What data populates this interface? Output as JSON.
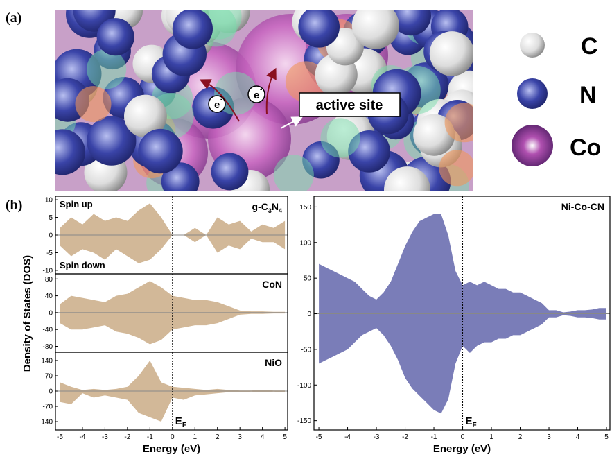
{
  "panel_a": {
    "label": "(a)",
    "active_site": "active site",
    "electron": "e",
    "electron_charge": "-",
    "legend": [
      "C",
      "N",
      "Co"
    ]
  },
  "panel_b_label": "(b)",
  "ylabel": "Density of States (DOS)",
  "fermi_label": "E",
  "fermi_subscript": "F",
  "chart_data": [
    {
      "type": "area",
      "title": [
        "g-C",
        "3",
        "N",
        "4"
      ],
      "color": "#d2b898",
      "x": [
        -5,
        -4.5,
        -4,
        -3.5,
        -3,
        -2.5,
        -2,
        -1.5,
        -1,
        -0.5,
        0,
        0.5,
        1,
        1.5,
        2,
        2.5,
        3,
        3.5,
        4,
        4.5,
        5
      ],
      "series": [
        {
          "name": "Spin up",
          "values": [
            2,
            5,
            3,
            6,
            4,
            5,
            4,
            7,
            9,
            5,
            0,
            0,
            2,
            0,
            5,
            3,
            4,
            1,
            3,
            2,
            4
          ]
        },
        {
          "name": "Spin down",
          "values": [
            -3,
            -6,
            -4,
            -5,
            -7,
            -4,
            -6,
            -8,
            -7,
            -4,
            0,
            0,
            -2,
            0,
            -5,
            -3,
            -4,
            -1,
            -2,
            -2,
            -4
          ]
        }
      ],
      "xlim": [
        -5.2,
        5.12
      ],
      "ylim": [
        -11,
        11
      ],
      "yticks": [
        -10,
        -5,
        0,
        5,
        10
      ]
    },
    {
      "type": "area",
      "title": [
        "CoN"
      ],
      "color": "#d2b898",
      "x": [
        -5,
        -4.5,
        -4,
        -3.5,
        -3,
        -2.5,
        -2,
        -1.5,
        -1,
        -0.5,
        0,
        0.5,
        1,
        1.5,
        2,
        2.5,
        3,
        3.5,
        4,
        4.5,
        5
      ],
      "series": [
        {
          "values": [
            20,
            40,
            35,
            30,
            25,
            40,
            45,
            60,
            75,
            60,
            40,
            35,
            30,
            30,
            25,
            15,
            5,
            3,
            3,
            2,
            2
          ]
        },
        {
          "values": [
            -25,
            -40,
            -40,
            -35,
            -30,
            -45,
            -50,
            -60,
            -75,
            -65,
            -40,
            -35,
            -30,
            -30,
            -25,
            -15,
            -5,
            -3,
            -3,
            -2,
            -2
          ]
        }
      ],
      "xlim": [
        -5.2,
        5.12
      ],
      "ylim": [
        -94,
        92
      ],
      "yticks": [
        -80,
        -40,
        0,
        40,
        80
      ]
    },
    {
      "type": "area",
      "title": [
        "NiO"
      ],
      "color": "#d2b898",
      "x": [
        -5,
        -4.5,
        -4,
        -3.5,
        -3,
        -2.5,
        -2,
        -1.5,
        -1,
        -0.5,
        0,
        0.5,
        1,
        1.5,
        2,
        2.5,
        3,
        3.5,
        4,
        4.5,
        5
      ],
      "series": [
        {
          "values": [
            40,
            20,
            5,
            10,
            5,
            10,
            20,
            70,
            140,
            40,
            20,
            15,
            10,
            5,
            10,
            5,
            3,
            3,
            5,
            3,
            3
          ]
        },
        {
          "values": [
            -50,
            -60,
            -10,
            -30,
            -20,
            -30,
            -40,
            -100,
            -120,
            -140,
            -30,
            -40,
            -20,
            -15,
            -10,
            -5,
            -5,
            -3,
            -5,
            -3,
            -5
          ]
        }
      ],
      "xlim": [
        -5.2,
        5.12
      ],
      "ylim": [
        -178,
        178
      ],
      "yticks": [
        -140,
        -70,
        0,
        70,
        140
      ],
      "xticks": [
        -5,
        -4,
        -3,
        -2,
        -1,
        0,
        1,
        2,
        3,
        4,
        5
      ],
      "xlabel": "Energy (eV)"
    },
    {
      "type": "area",
      "title": [
        "Ni-Co-CN"
      ],
      "color": "#7a7db8",
      "x": [
        -5,
        -4.75,
        -4.5,
        -4.25,
        -4,
        -3.75,
        -3.5,
        -3.25,
        -3,
        -2.75,
        -2.5,
        -2.25,
        -2,
        -1.75,
        -1.5,
        -1.25,
        -1,
        -0.75,
        -0.5,
        -0.25,
        0,
        0.25,
        0.5,
        0.75,
        1,
        1.25,
        1.5,
        1.75,
        2,
        2.25,
        2.5,
        2.75,
        3,
        3.25,
        3.5,
        3.75,
        4,
        4.25,
        4.5,
        4.75,
        5
      ],
      "series": [
        {
          "values": [
            70,
            65,
            60,
            55,
            50,
            45,
            35,
            25,
            20,
            30,
            45,
            70,
            95,
            115,
            130,
            135,
            140,
            140,
            110,
            60,
            40,
            45,
            40,
            45,
            40,
            35,
            35,
            30,
            30,
            25,
            20,
            15,
            5,
            5,
            2,
            3,
            5,
            5,
            6,
            8,
            8
          ]
        },
        {
          "values": [
            -70,
            -65,
            -60,
            -55,
            -50,
            -40,
            -30,
            -25,
            -20,
            -30,
            -45,
            -65,
            -90,
            -105,
            -115,
            -125,
            -135,
            -140,
            -120,
            -70,
            -45,
            -55,
            -45,
            -40,
            -40,
            -35,
            -35,
            -30,
            -30,
            -25,
            -20,
            -15,
            -5,
            -5,
            -2,
            -3,
            -5,
            -5,
            -6,
            -8,
            -8
          ]
        }
      ],
      "xlim": [
        -5.17,
        5.12
      ],
      "ylim": [
        -163,
        165
      ],
      "yticks": [
        -150,
        -100,
        -50,
        0,
        50,
        100,
        150
      ],
      "xticks": [
        -5,
        -4,
        -3,
        -2,
        -1,
        0,
        1,
        2,
        3,
        4,
        5
      ],
      "xlabel": "Energy (eV)"
    }
  ]
}
